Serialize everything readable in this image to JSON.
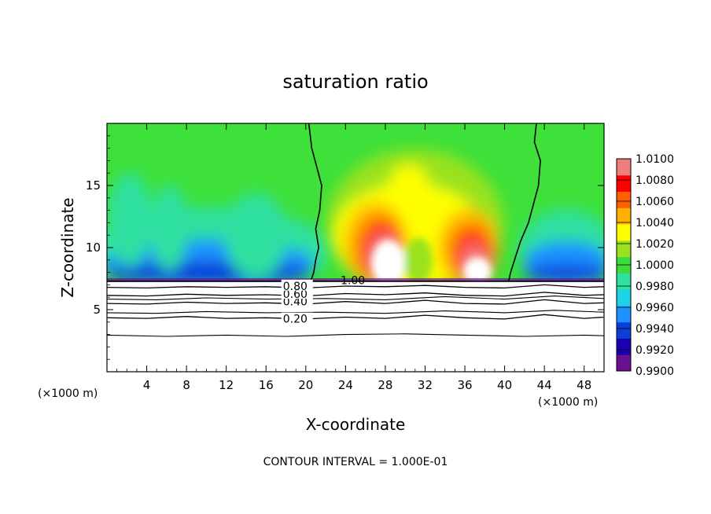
{
  "chart_data": {
    "type": "heatmap",
    "title": "saturation ratio",
    "xlabel": "X-coordinate",
    "ylabel": "Z-coordinate",
    "x_unit_left": "(×1000 m)",
    "x_unit_right": "(×1000 m)",
    "xlim": [
      0,
      50
    ],
    "ylim": [
      0,
      20
    ],
    "x_ticks": [
      4,
      8,
      12,
      16,
      20,
      24,
      28,
      32,
      36,
      40,
      44,
      48
    ],
    "x_tick_labels": [
      "4",
      "8",
      "12",
      "16",
      "20",
      "24",
      "28",
      "32",
      "36",
      "40",
      "44",
      "48"
    ],
    "y_ticks": [
      5,
      10,
      15
    ],
    "y_tick_labels": [
      "5",
      "10",
      "15"
    ],
    "grid": false,
    "colorbar": {
      "position": "right",
      "min": 0.99,
      "max": 1.01,
      "ticks": [
        0.99,
        0.992,
        0.994,
        0.996,
        0.998,
        1.0,
        1.002,
        1.004,
        1.006,
        1.008,
        1.01
      ],
      "tick_labels": [
        "0.9900",
        "0.9920",
        "0.9940",
        "0.9960",
        "0.9980",
        "1.0000",
        "1.0020",
        "1.0040",
        "1.0060",
        "1.0080",
        "1.0100"
      ],
      "colors": [
        "#6a0f8e",
        "#1b00b4",
        "#0a3fd8",
        "#1e90ff",
        "#1ed2e8",
        "#2fe0a0",
        "#3cdc3c",
        "#9ae21e",
        "#ffff00",
        "#ffb000",
        "#ff6000",
        "#ff0000",
        "#f07d7d"
      ]
    },
    "surface_level": 7.3,
    "contours": [
      {
        "level": 0.2,
        "label": "0.20",
        "label_x": 17.7,
        "y": 4.2,
        "points": [
          [
            0,
            4.35
          ],
          [
            4,
            4.3
          ],
          [
            8,
            4.45
          ],
          [
            12,
            4.3
          ],
          [
            16,
            4.35
          ],
          [
            20,
            4.25
          ],
          [
            24,
            4.4
          ],
          [
            28,
            4.3
          ],
          [
            32,
            4.55
          ],
          [
            36,
            4.35
          ],
          [
            40,
            4.25
          ],
          [
            44,
            4.6
          ],
          [
            48,
            4.3
          ],
          [
            50,
            4.4
          ]
        ]
      },
      {
        "level": 0.4,
        "label": "0.40",
        "label_x": 17.7,
        "y": 5.6,
        "points": [
          [
            0,
            5.5
          ],
          [
            4,
            5.45
          ],
          [
            8,
            5.6
          ],
          [
            12,
            5.5
          ],
          [
            16,
            5.55
          ],
          [
            20,
            5.45
          ],
          [
            24,
            5.65
          ],
          [
            28,
            5.5
          ],
          [
            32,
            5.75
          ],
          [
            36,
            5.5
          ],
          [
            40,
            5.45
          ],
          [
            44,
            5.8
          ],
          [
            48,
            5.5
          ],
          [
            50,
            5.55
          ]
        ]
      },
      {
        "level": 0.6,
        "label": "0.60",
        "label_x": 17.7,
        "y": 6.2,
        "points": [
          [
            0,
            6.15
          ],
          [
            4,
            6.1
          ],
          [
            8,
            6.25
          ],
          [
            12,
            6.15
          ],
          [
            16,
            6.2
          ],
          [
            20,
            6.1
          ],
          [
            24,
            6.3
          ],
          [
            28,
            6.2
          ],
          [
            32,
            6.35
          ],
          [
            36,
            6.15
          ],
          [
            40,
            6.1
          ],
          [
            44,
            6.4
          ],
          [
            48,
            6.15
          ],
          [
            50,
            6.2
          ]
        ]
      },
      {
        "level": 0.8,
        "label": "0.80",
        "label_x": 17.7,
        "y": 6.85,
        "points": [
          [
            0,
            6.8
          ],
          [
            4,
            6.75
          ],
          [
            8,
            6.85
          ],
          [
            12,
            6.8
          ],
          [
            16,
            6.85
          ],
          [
            20,
            6.75
          ],
          [
            24,
            6.9
          ],
          [
            28,
            6.85
          ],
          [
            32,
            6.95
          ],
          [
            36,
            6.8
          ],
          [
            40,
            6.75
          ],
          [
            44,
            7.0
          ],
          [
            48,
            6.8
          ],
          [
            50,
            6.85
          ]
        ]
      },
      {
        "level": 1.0,
        "label": "1.00",
        "label_x": 23.5,
        "y": 7.3,
        "points": []
      }
    ],
    "extra_isolines": [
      [
        [
          0,
          2.95
        ],
        [
          6,
          2.85
        ],
        [
          12,
          2.95
        ],
        [
          18,
          2.85
        ],
        [
          24,
          3.0
        ],
        [
          30,
          3.05
        ],
        [
          36,
          2.95
        ],
        [
          42,
          2.85
        ],
        [
          48,
          2.95
        ],
        [
          50,
          2.9
        ]
      ],
      [
        [
          0,
          4.75
        ],
        [
          5,
          4.7
        ],
        [
          10,
          4.85
        ],
        [
          16,
          4.75
        ],
        [
          22,
          4.8
        ],
        [
          28,
          4.7
        ],
        [
          34,
          4.9
        ],
        [
          40,
          4.75
        ],
        [
          45,
          4.95
        ],
        [
          50,
          4.8
        ]
      ],
      [
        [
          0,
          5.85
        ],
        [
          5,
          5.8
        ],
        [
          10,
          5.95
        ],
        [
          16,
          5.85
        ],
        [
          22,
          5.9
        ],
        [
          28,
          5.8
        ],
        [
          34,
          6.05
        ],
        [
          40,
          5.85
        ],
        [
          45,
          6.1
        ],
        [
          50,
          5.9
        ]
      ]
    ],
    "boundary_lines": [
      [
        [
          20.3,
          20
        ],
        [
          20.6,
          18
        ],
        [
          21.1,
          16.5
        ],
        [
          21.6,
          15
        ],
        [
          21.4,
          13
        ],
        [
          21.0,
          11.5
        ],
        [
          21.3,
          10
        ],
        [
          21.0,
          9
        ],
        [
          20.8,
          8
        ],
        [
          20.5,
          7.3
        ]
      ],
      [
        [
          43.2,
          20
        ],
        [
          43.0,
          18.5
        ],
        [
          43.6,
          17
        ],
        [
          43.4,
          15
        ],
        [
          42.9,
          13.5
        ],
        [
          42.4,
          12
        ],
        [
          41.6,
          10.5
        ],
        [
          41.0,
          9
        ],
        [
          40.6,
          8
        ],
        [
          40.4,
          7.3
        ]
      ]
    ],
    "footer": "CONTOUR INTERVAL = 1.000E-01"
  }
}
